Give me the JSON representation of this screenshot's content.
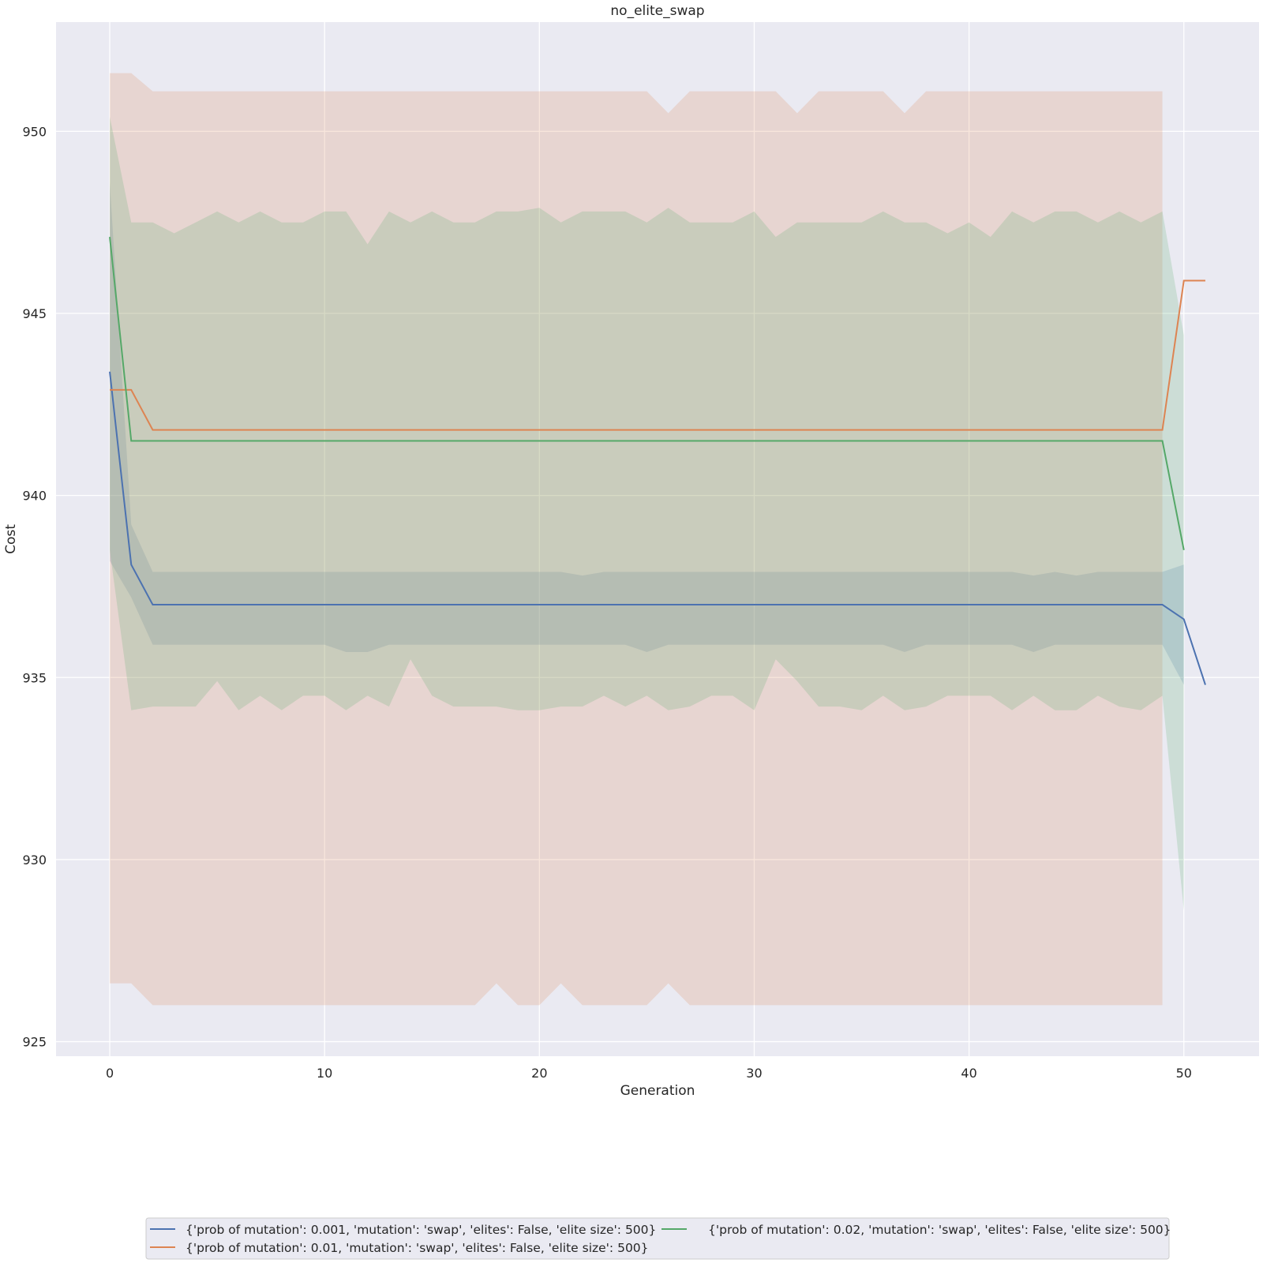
{
  "chart_data": {
    "type": "line",
    "title": "no_elite_swap",
    "xlabel": "Generation",
    "ylabel": "Cost",
    "xlim": [
      -2.5,
      53.5
    ],
    "ylim": [
      924.6,
      953.0
    ],
    "xticks": [
      0,
      10,
      20,
      30,
      40,
      50
    ],
    "yticks": [
      925,
      930,
      935,
      940,
      945,
      950
    ],
    "grid": true,
    "legend_position": "bottom-center",
    "series": [
      {
        "name": "{'prob of mutation': 0.001, 'mutation': 'swap', 'elites': False, 'elite size': 500}",
        "color": "#4c72b0",
        "x": [
          0,
          1,
          2,
          3,
          4,
          5,
          6,
          7,
          8,
          9,
          10,
          11,
          12,
          13,
          14,
          15,
          16,
          17,
          18,
          19,
          20,
          21,
          22,
          23,
          24,
          25,
          26,
          27,
          28,
          29,
          30,
          31,
          32,
          33,
          34,
          35,
          36,
          37,
          38,
          39,
          40,
          41,
          42,
          43,
          44,
          45,
          46,
          47,
          48,
          49,
          50,
          51
        ],
        "y": [
          943.4,
          938.1,
          937.0,
          937.0,
          937.0,
          937.0,
          937.0,
          937.0,
          937.0,
          937.0,
          937.0,
          937.0,
          937.0,
          937.0,
          937.0,
          937.0,
          937.0,
          937.0,
          937.0,
          937.0,
          937.0,
          937.0,
          937.0,
          937.0,
          937.0,
          937.0,
          937.0,
          937.0,
          937.0,
          937.0,
          937.0,
          937.0,
          937.0,
          937.0,
          937.0,
          937.0,
          937.0,
          937.0,
          937.0,
          937.0,
          937.0,
          937.0,
          937.0,
          937.0,
          937.0,
          937.0,
          937.0,
          937.0,
          937.0,
          937.0,
          936.6,
          934.8
        ],
        "ci_lower": [
          938.2,
          937.2,
          935.9,
          935.9,
          935.9,
          935.9,
          935.9,
          935.9,
          935.9,
          935.9,
          935.9,
          935.7,
          935.7,
          935.9,
          935.9,
          935.9,
          935.9,
          935.9,
          935.9,
          935.9,
          935.9,
          935.9,
          935.9,
          935.9,
          935.9,
          935.7,
          935.9,
          935.9,
          935.9,
          935.9,
          935.9,
          935.9,
          935.9,
          935.9,
          935.9,
          935.9,
          935.9,
          935.7,
          935.9,
          935.9,
          935.9,
          935.9,
          935.9,
          935.7,
          935.9,
          935.9,
          935.9,
          935.9,
          935.9,
          935.9,
          934.8
        ],
        "ci_upper": [
          948.6,
          939.2,
          937.9,
          937.9,
          937.9,
          937.9,
          937.9,
          937.9,
          937.9,
          937.9,
          937.9,
          937.9,
          937.9,
          937.9,
          937.9,
          937.9,
          937.9,
          937.9,
          937.9,
          937.9,
          937.9,
          937.9,
          937.8,
          937.9,
          937.9,
          937.9,
          937.9,
          937.9,
          937.9,
          937.9,
          937.9,
          937.9,
          937.9,
          937.9,
          937.9,
          937.9,
          937.9,
          937.9,
          937.9,
          937.9,
          937.9,
          937.9,
          937.9,
          937.8,
          937.9,
          937.8,
          937.9,
          937.9,
          937.9,
          937.9,
          938.1
        ]
      },
      {
        "name": "{'prob of mutation': 0.01, 'mutation': 'swap', 'elites': False, 'elite size': 500}",
        "color": "#dd8452",
        "x": [
          0,
          1,
          2,
          3,
          4,
          5,
          6,
          7,
          8,
          9,
          10,
          11,
          12,
          13,
          14,
          15,
          16,
          17,
          18,
          19,
          20,
          21,
          22,
          23,
          24,
          25,
          26,
          27,
          28,
          29,
          30,
          31,
          32,
          33,
          34,
          35,
          36,
          37,
          38,
          39,
          40,
          41,
          42,
          43,
          44,
          45,
          46,
          47,
          48,
          49,
          50,
          51
        ],
        "y": [
          942.9,
          942.9,
          941.8,
          941.8,
          941.8,
          941.8,
          941.8,
          941.8,
          941.8,
          941.8,
          941.8,
          941.8,
          941.8,
          941.8,
          941.8,
          941.8,
          941.8,
          941.8,
          941.8,
          941.8,
          941.8,
          941.8,
          941.8,
          941.8,
          941.8,
          941.8,
          941.8,
          941.8,
          941.8,
          941.8,
          941.8,
          941.8,
          941.8,
          941.8,
          941.8,
          941.8,
          941.8,
          941.8,
          941.8,
          941.8,
          941.8,
          941.8,
          941.8,
          941.8,
          941.8,
          941.8,
          941.8,
          941.8,
          941.8,
          941.8,
          945.9,
          945.9
        ],
        "ci_lower": [
          926.6,
          926.6,
          926.0,
          926.0,
          926.0,
          926.0,
          926.0,
          926.0,
          926.0,
          926.0,
          926.0,
          926.0,
          926.0,
          926.0,
          926.0,
          926.0,
          926.0,
          926.0,
          926.6,
          926.0,
          926.0,
          926.6,
          926.0,
          926.0,
          926.0,
          926.0,
          926.6,
          926.0,
          926.0,
          926.0,
          926.0,
          926.0,
          926.0,
          926.0,
          926.0,
          926.0,
          926.0,
          926.0,
          926.0,
          926.0,
          926.0,
          926.0,
          926.0,
          926.0,
          926.0,
          926.0,
          926.0,
          926.0,
          926.0,
          926.0
        ],
        "ci_upper": [
          951.6,
          951.6,
          951.1,
          951.1,
          951.1,
          951.1,
          951.1,
          951.1,
          951.1,
          951.1,
          951.1,
          951.1,
          951.1,
          951.1,
          951.1,
          951.1,
          951.1,
          951.1,
          951.1,
          951.1,
          951.1,
          951.1,
          951.1,
          951.1,
          951.1,
          951.1,
          950.5,
          951.1,
          951.1,
          951.1,
          951.1,
          951.1,
          950.5,
          951.1,
          951.1,
          951.1,
          951.1,
          950.5,
          951.1,
          951.1,
          951.1,
          951.1,
          951.1,
          951.1,
          951.1,
          951.1,
          951.1,
          951.1,
          951.1,
          951.1
        ]
      },
      {
        "name": "{'prob of mutation': 0.02, 'mutation': 'swap', 'elites': False, 'elite size': 500}",
        "color": "#55a868",
        "x": [
          0,
          1,
          2,
          3,
          4,
          5,
          6,
          7,
          8,
          9,
          10,
          11,
          12,
          13,
          14,
          15,
          16,
          17,
          18,
          19,
          20,
          21,
          22,
          23,
          24,
          25,
          26,
          27,
          28,
          29,
          30,
          31,
          32,
          33,
          34,
          35,
          36,
          37,
          38,
          39,
          40,
          41,
          42,
          43,
          44,
          45,
          46,
          47,
          48,
          49,
          50
        ],
        "y": [
          947.1,
          941.5,
          941.5,
          941.5,
          941.5,
          941.5,
          941.5,
          941.5,
          941.5,
          941.5,
          941.5,
          941.5,
          941.5,
          941.5,
          941.5,
          941.5,
          941.5,
          941.5,
          941.5,
          941.5,
          941.5,
          941.5,
          941.5,
          941.5,
          941.5,
          941.5,
          941.5,
          941.5,
          941.5,
          941.5,
          941.5,
          941.5,
          941.5,
          941.5,
          941.5,
          941.5,
          941.5,
          941.5,
          941.5,
          941.5,
          941.5,
          941.5,
          941.5,
          941.5,
          941.5,
          941.5,
          941.5,
          941.5,
          941.5,
          941.5,
          938.5
        ],
        "ci_lower": [
          938.5,
          934.1,
          934.2,
          934.2,
          934.2,
          934.9,
          934.1,
          934.5,
          934.1,
          934.5,
          934.5,
          934.1,
          934.5,
          934.2,
          935.5,
          934.5,
          934.2,
          934.2,
          934.2,
          934.1,
          934.1,
          934.2,
          934.2,
          934.5,
          934.2,
          934.5,
          934.1,
          934.2,
          934.5,
          934.5,
          934.1,
          935.5,
          934.9,
          934.2,
          934.2,
          934.1,
          934.5,
          934.1,
          934.2,
          934.5,
          934.5,
          934.5,
          934.1,
          934.5,
          934.1,
          934.1,
          934.5,
          934.2,
          934.1,
          934.5,
          928.6
        ],
        "ci_upper": [
          950.4,
          947.5,
          947.5,
          947.2,
          947.5,
          947.8,
          947.5,
          947.8,
          947.5,
          947.5,
          947.8,
          947.8,
          946.9,
          947.8,
          947.5,
          947.8,
          947.5,
          947.5,
          947.8,
          947.8,
          947.9,
          947.5,
          947.8,
          947.8,
          947.8,
          947.5,
          947.9,
          947.5,
          947.5,
          947.5,
          947.8,
          947.1,
          947.5,
          947.5,
          947.5,
          947.5,
          947.8,
          947.5,
          947.5,
          947.2,
          947.5,
          947.1,
          947.8,
          947.5,
          947.8,
          947.8,
          947.5,
          947.8,
          947.5,
          947.8,
          944.4
        ]
      }
    ]
  }
}
